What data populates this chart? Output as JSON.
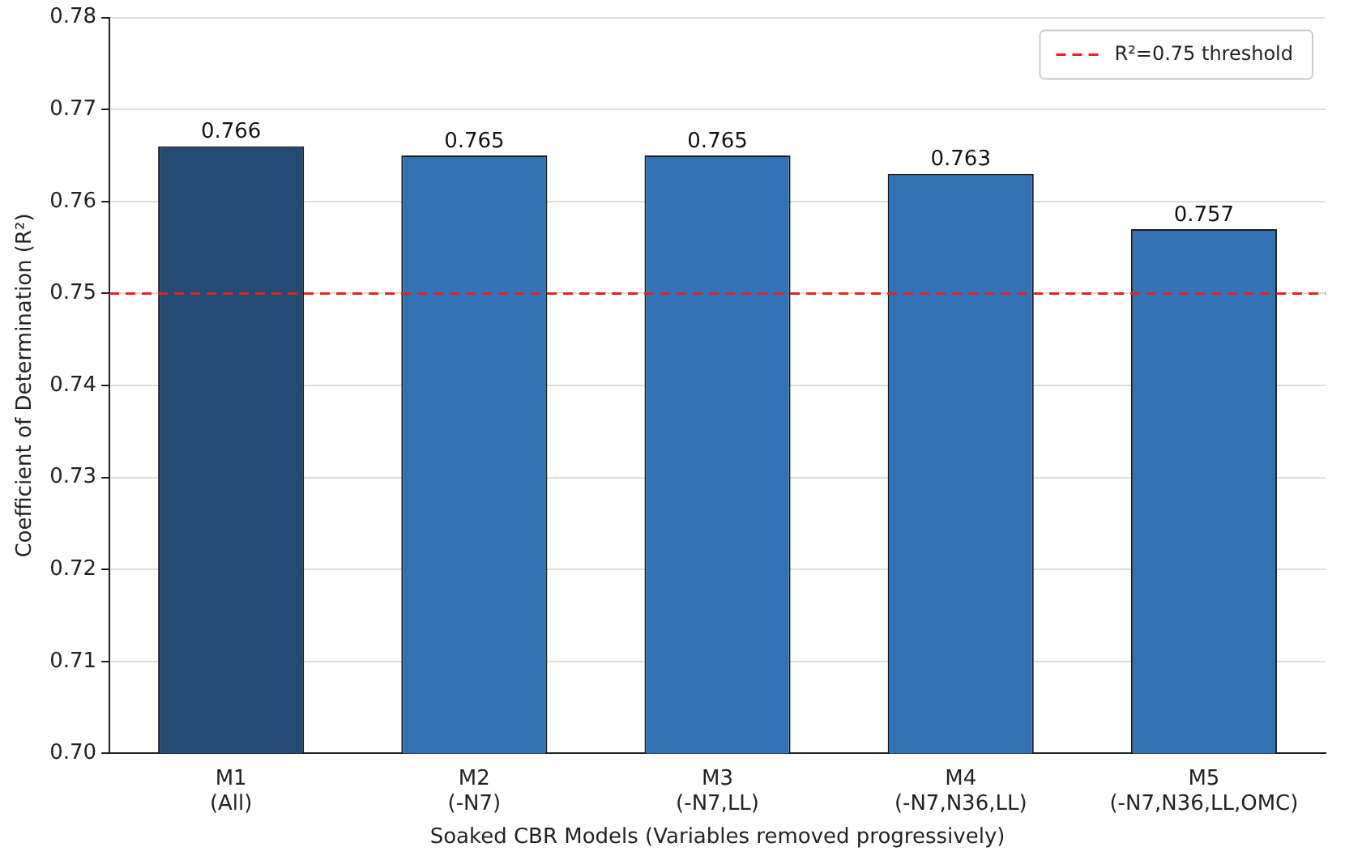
{
  "chart_data": {
    "type": "bar",
    "categories": [
      "M1\n(All)",
      "M2\n(-N7)",
      "M3\n(-N7,LL)",
      "M4\n(-N7,N36,LL)",
      "M5\n(-N7,N36,LL,OMC)"
    ],
    "values": [
      0.766,
      0.765,
      0.765,
      0.763,
      0.757
    ],
    "colors": [
      "#234b73",
      "#3273b5",
      "#3273b5",
      "#3273b5",
      "#3273b5"
    ],
    "xlabel": "Soaked CBR Models (Variables removed progressively)",
    "ylabel": "Coefficient of Determination (R²)",
    "ylim": [
      0.7,
      0.78
    ],
    "yticks": [
      {
        "value": 0.7,
        "label": "0.70"
      },
      {
        "value": 0.71,
        "label": "0.71"
      },
      {
        "value": 0.72,
        "label": "0.72"
      },
      {
        "value": 0.73,
        "label": "0.73"
      },
      {
        "value": 0.74,
        "label": "0.74"
      },
      {
        "value": 0.75,
        "label": "0.75"
      },
      {
        "value": 0.76,
        "label": "0.76"
      },
      {
        "value": 0.77,
        "label": "0.77"
      },
      {
        "value": 0.78,
        "label": "0.78"
      }
    ],
    "ref_lines": [
      {
        "axis": "y",
        "value": 0.75,
        "label": "R²=0.75 threshold",
        "color": "#e8201e",
        "line_style": "dashed"
      }
    ],
    "data_labels": true,
    "grid": "y",
    "legend": "top right"
  }
}
